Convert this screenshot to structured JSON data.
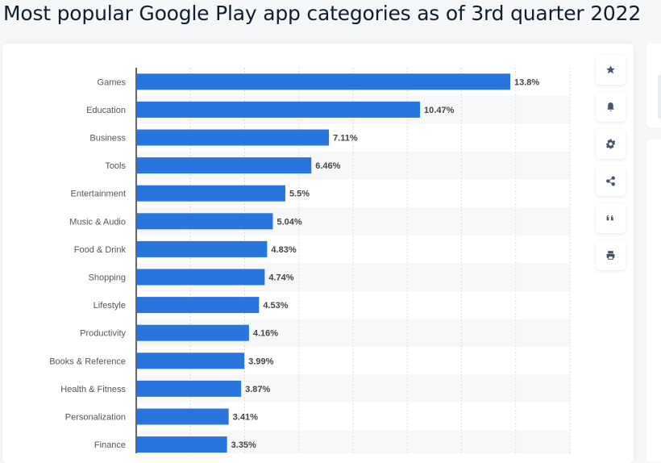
{
  "title": "Most popular Google Play app categories as of 3rd quarter 2022",
  "toolbar": {
    "icons": [
      "star-icon",
      "bell-icon",
      "gear-icon",
      "share-icon",
      "quote-icon",
      "print-icon"
    ]
  },
  "chart_data": {
    "type": "bar",
    "orientation": "horizontal",
    "title": "Most popular Google Play app categories as of 3rd quarter 2022",
    "xlabel": "",
    "ylabel": "",
    "xlim": [
      0,
      16
    ],
    "grid": true,
    "bar_color": "#2876dd",
    "categories": [
      "Games",
      "Education",
      "Business",
      "Tools",
      "Entertainment",
      "Music & Audio",
      "Food & Drink",
      "Shopping",
      "Lifestyle",
      "Productivity",
      "Books & Reference",
      "Health & Fitness",
      "Personalization",
      "Finance"
    ],
    "values": [
      13.8,
      10.47,
      7.11,
      6.46,
      5.5,
      5.04,
      4.83,
      4.74,
      4.53,
      4.16,
      3.99,
      3.87,
      3.41,
      3.35
    ],
    "labels": [
      "13.8%",
      "10.47%",
      "7.11%",
      "6.46%",
      "5.5%",
      "5.04%",
      "4.83%",
      "4.74%",
      "4.53%",
      "4.16%",
      "3.99%",
      "3.87%",
      "3.41%",
      "3.35%"
    ]
  }
}
